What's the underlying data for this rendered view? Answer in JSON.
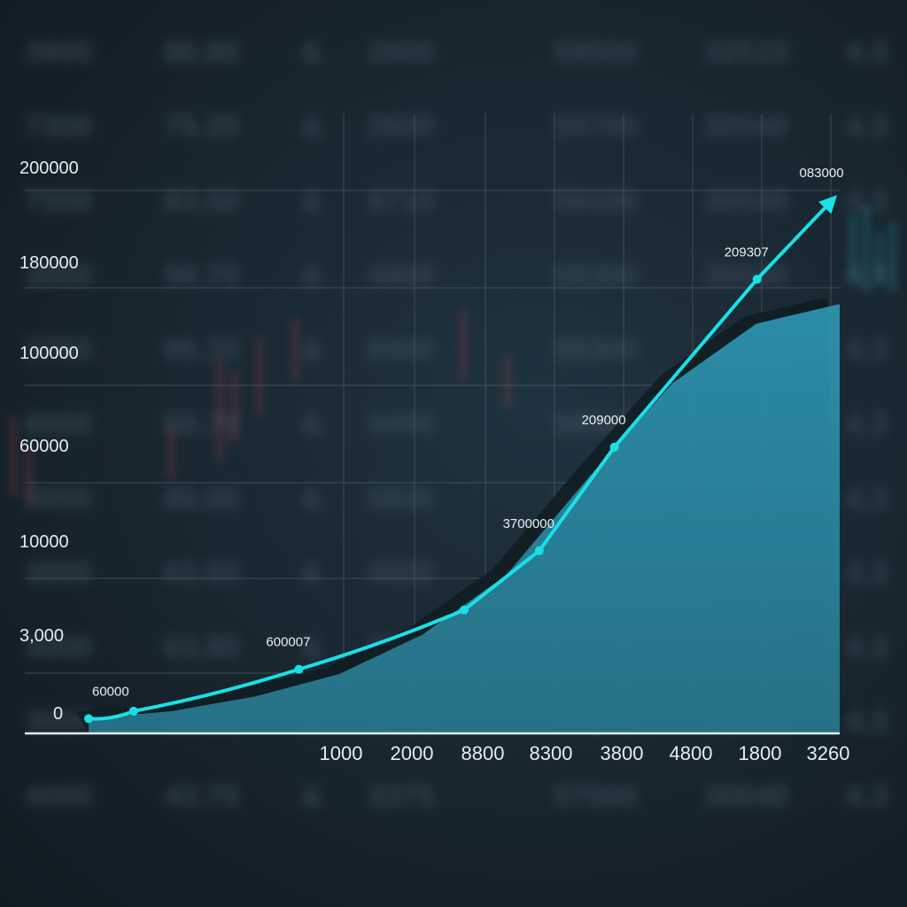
{
  "chart_data": {
    "type": "area",
    "title": "",
    "xlabel": "",
    "ylabel": "",
    "y_tick_labels": [
      "200000",
      "180000",
      "100000",
      "60000",
      "10000",
      "3,000",
      "0"
    ],
    "x_tick_labels": [
      "1000",
      "2000",
      "8800",
      "8300",
      "3800",
      "4800",
      "1800",
      "3260"
    ],
    "series": [
      {
        "values": [
          0.03,
          0.045,
          0.075,
          0.12,
          0.2,
          0.32,
          0.52,
          0.71,
          0.83,
          0.87
        ]
      }
    ],
    "line_points": [
      {
        "x": 0.0,
        "y": 0.03,
        "label": "60000"
      },
      {
        "x": 0.06,
        "y": 0.045,
        "label": ""
      },
      {
        "x": 0.28,
        "y": 0.13,
        "label": "600007"
      },
      {
        "x": 0.5,
        "y": 0.25,
        "label": ""
      },
      {
        "x": 0.6,
        "y": 0.37,
        "label": "3700000"
      },
      {
        "x": 0.7,
        "y": 0.58,
        "label": "209000"
      },
      {
        "x": 0.89,
        "y": 0.92,
        "label": "209307"
      },
      {
        "x": 0.99,
        "y": 1.08,
        "label": "083000"
      }
    ],
    "x_range": [
      0,
      1
    ],
    "y_range": [
      0,
      1.1
    ],
    "grid": true,
    "arrow_end": true,
    "colors": {
      "line": "#19e0e6",
      "area": "#2e93b0",
      "area_edge": "#0f1c22",
      "grid": "#5b6c76",
      "axis": "#e6edf0",
      "background": "#17252e"
    }
  },
  "background": {
    "ticker_rows": [
      [
        "3905",
        "86.80",
        "&",
        "2600",
        "59500",
        "32510",
        "4.3"
      ],
      [
        "7300",
        "75.20",
        "&",
        "2600",
        "59700",
        "30040",
        "4.3"
      ],
      [
        "7550",
        "83.50",
        "&",
        "8710",
        "59100",
        "30040",
        "4.3"
      ],
      [
        "3000",
        "56.70",
        "&",
        "4400",
        "58300",
        "30040",
        "4.3"
      ],
      [
        "3750",
        "86.70",
        "&",
        "6900",
        "58300",
        "30040",
        "4.3"
      ],
      [
        "8000",
        "56.70",
        "&",
        "5000",
        "58300",
        "30040",
        "4.3"
      ],
      [
        "3000",
        "86.80",
        "&",
        "5600",
        "58300",
        "30040",
        "4.3"
      ],
      [
        "3000",
        "63.50",
        "&",
        "5600",
        "58300",
        "30040",
        "4.3"
      ],
      [
        "3000",
        "63.80",
        "&",
        "7500",
        "58300",
        "30040",
        "4.3"
      ],
      [
        "3000",
        "63.80",
        "&",
        "5600",
        "58300",
        "30040",
        "4.3"
      ],
      [
        "4000",
        "43.70",
        "&",
        "3375",
        "57000",
        "30040",
        "4.3"
      ]
    ]
  }
}
